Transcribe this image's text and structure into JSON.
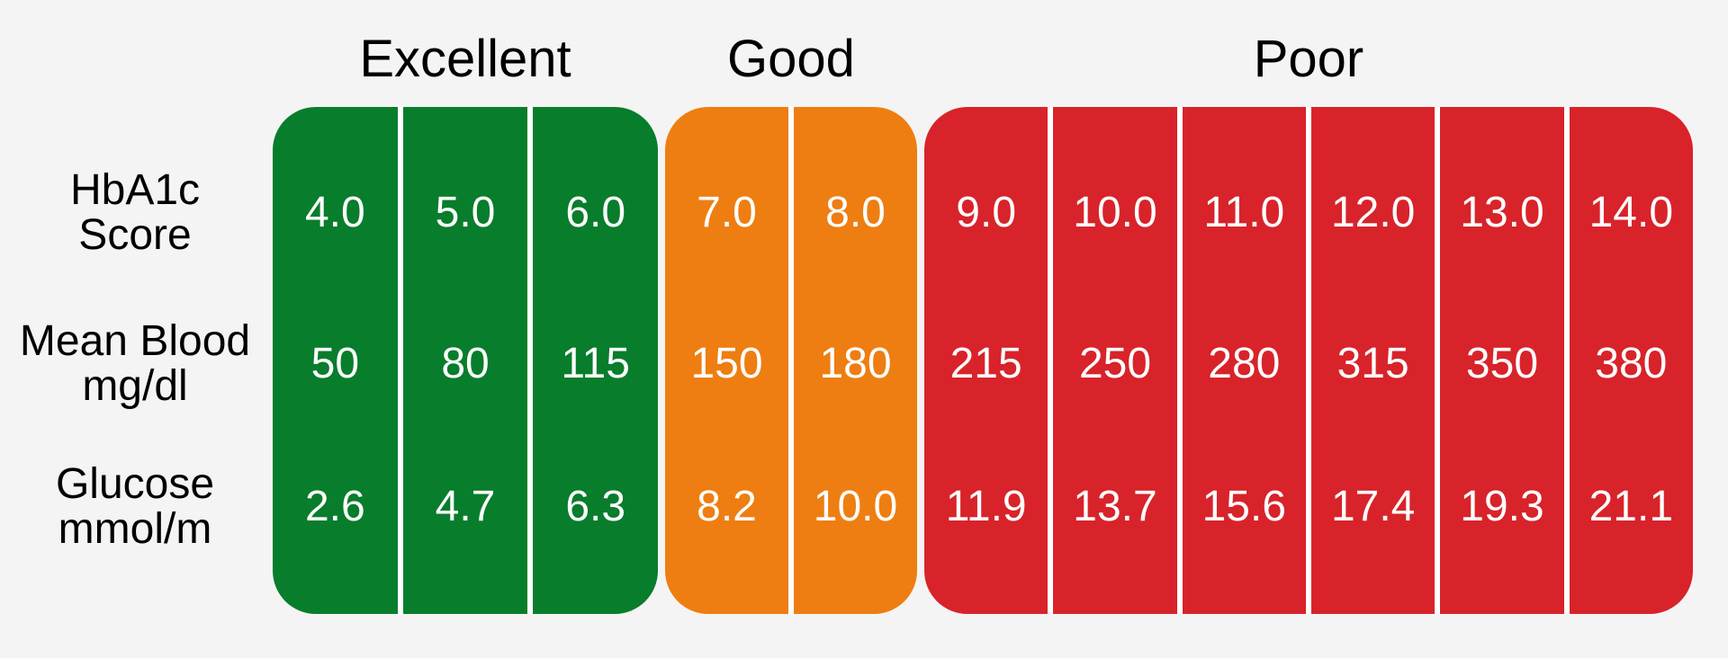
{
  "background_color": "#f4f4f4",
  "label_text_color": "#000000",
  "value_text_color": "#ffffff",
  "divider_color": "#ffffff",
  "row_labels": [
    {
      "line1": "HbA1c",
      "line2": "Score"
    },
    {
      "line1": "Mean Blood",
      "line2": "mg/dl"
    },
    {
      "line1": "Glucose",
      "line2": "mmol/m"
    }
  ],
  "groups": [
    {
      "label": "Excellent",
      "color": "#087d2c",
      "cells": [
        {
          "hba1c": "4.0",
          "mean_blood": "50",
          "glucose": "2.6"
        },
        {
          "hba1c": "5.0",
          "mean_blood": "80",
          "glucose": "4.7"
        },
        {
          "hba1c": "6.0",
          "mean_blood": "115",
          "glucose": "6.3"
        }
      ]
    },
    {
      "label": "Good",
      "color": "#ee7e11",
      "cells": [
        {
          "hba1c": "7.0",
          "mean_blood": "150",
          "glucose": "8.2"
        },
        {
          "hba1c": "8.0",
          "mean_blood": "180",
          "glucose": "10.0"
        }
      ]
    },
    {
      "label": "Poor",
      "color": "#d8232a",
      "cells": [
        {
          "hba1c": "9.0",
          "mean_blood": "215",
          "glucose": "11.9"
        },
        {
          "hba1c": "10.0",
          "mean_blood": "250",
          "glucose": "13.7"
        },
        {
          "hba1c": "11.0",
          "mean_blood": "280",
          "glucose": "15.6"
        },
        {
          "hba1c": "12.0",
          "mean_blood": "315",
          "glucose": "17.4"
        },
        {
          "hba1c": "13.0",
          "mean_blood": "350",
          "glucose": "19.3"
        },
        {
          "hba1c": "14.0",
          "mean_blood": "380",
          "glucose": "21.1"
        }
      ]
    }
  ],
  "chart_data": {
    "type": "table",
    "title": "",
    "column_groups": [
      {
        "label": "Excellent",
        "color": "#087d2c",
        "column_count": 3
      },
      {
        "label": "Good",
        "color": "#ee7e11",
        "column_count": 2
      },
      {
        "label": "Poor",
        "color": "#d8232a",
        "column_count": 6
      }
    ],
    "rows": [
      {
        "label": "HbA1c Score",
        "values": [
          4.0,
          5.0,
          6.0,
          7.0,
          8.0,
          9.0,
          10.0,
          11.0,
          12.0,
          13.0,
          14.0
        ]
      },
      {
        "label": "Mean Blood mg/dl",
        "values": [
          50,
          80,
          115,
          150,
          180,
          215,
          250,
          280,
          315,
          350,
          380
        ]
      },
      {
        "label": "Glucose mmol/m",
        "values": [
          2.6,
          4.7,
          6.3,
          8.2,
          10.0,
          11.9,
          13.7,
          15.6,
          17.4,
          19.3,
          21.1
        ]
      }
    ],
    "layout": {
      "grid": false,
      "legend": "column group headers above colored blocks"
    }
  }
}
